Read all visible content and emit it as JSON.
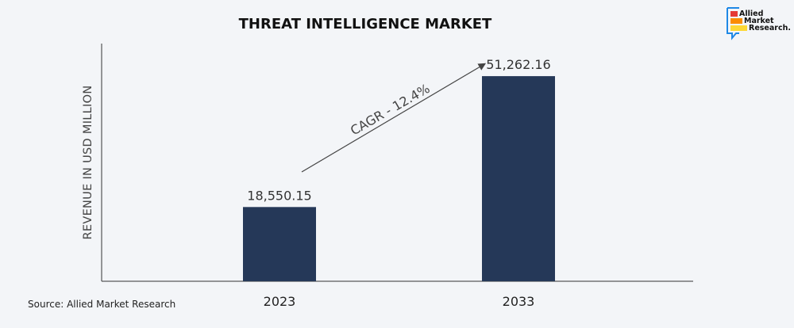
{
  "chart_data": {
    "type": "bar",
    "title": "THREAT INTELLIGENCE MARKET",
    "xlabel": "",
    "ylabel": "REVENUE IN USD MILLION",
    "categories": [
      "2023",
      "2033"
    ],
    "values": [
      18550.15,
      51262.16
    ],
    "value_labels": [
      "18,550.15",
      "51,262.16"
    ],
    "ylim": [
      0,
      59400
    ],
    "grid": false,
    "annotation": "CAGR - 12.4%",
    "bar_color": "#253858"
  },
  "source": "Source: Allied Market Research",
  "logo": {
    "lines": [
      "Allied",
      "Market",
      "Research."
    ]
  }
}
